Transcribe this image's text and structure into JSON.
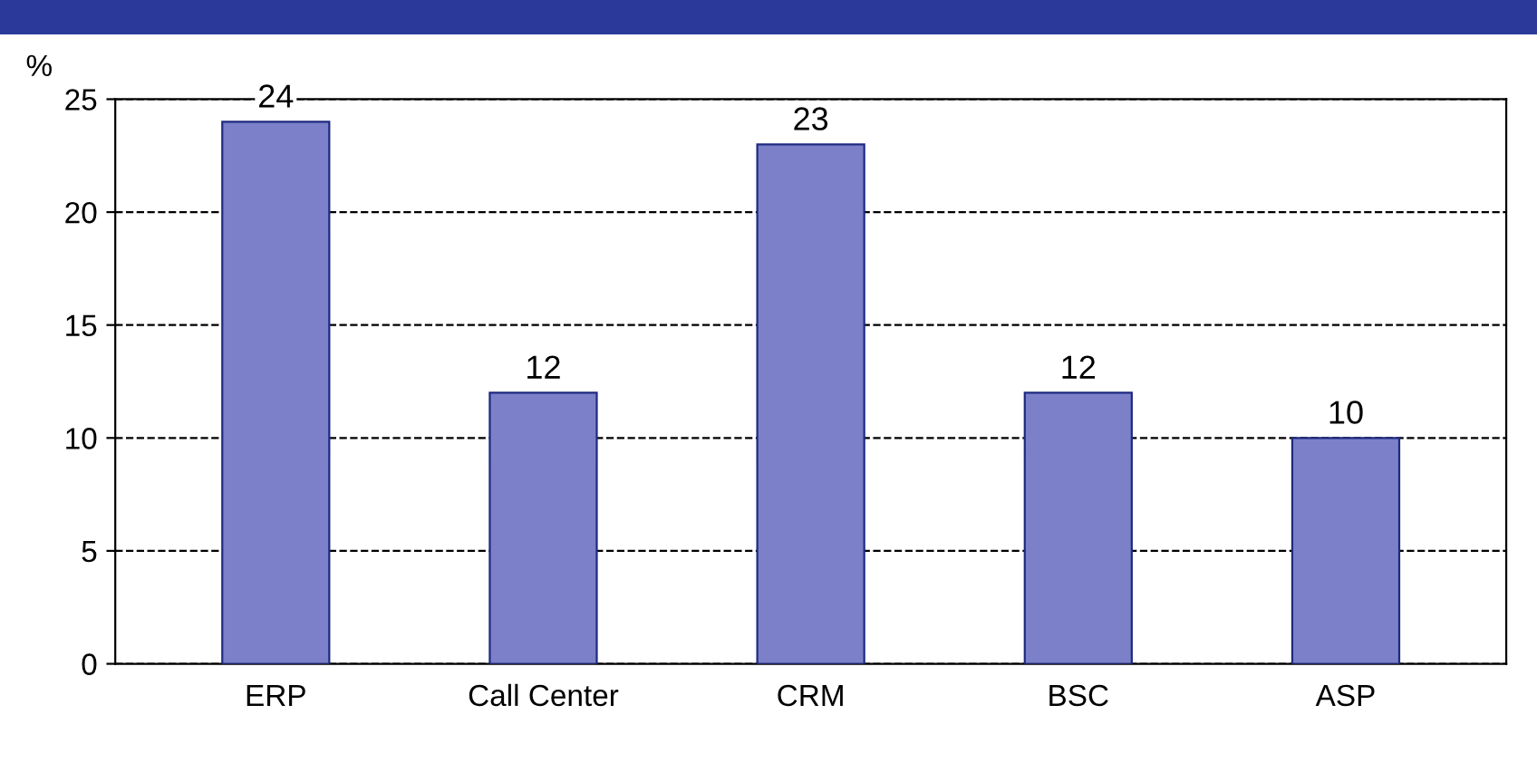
{
  "chart_data": {
    "type": "bar",
    "ylabel": "%",
    "categories": [
      "ERP",
      "Call Center",
      "CRM",
      "BSC",
      "ASP"
    ],
    "values": [
      24,
      12,
      23,
      12,
      10
    ],
    "color": "#7b80c8",
    "ylim": [
      0,
      25
    ],
    "yticks": [
      0,
      5,
      10,
      15,
      20,
      25
    ],
    "grid": "y",
    "line_style": "dashed",
    "data_labels": true
  }
}
